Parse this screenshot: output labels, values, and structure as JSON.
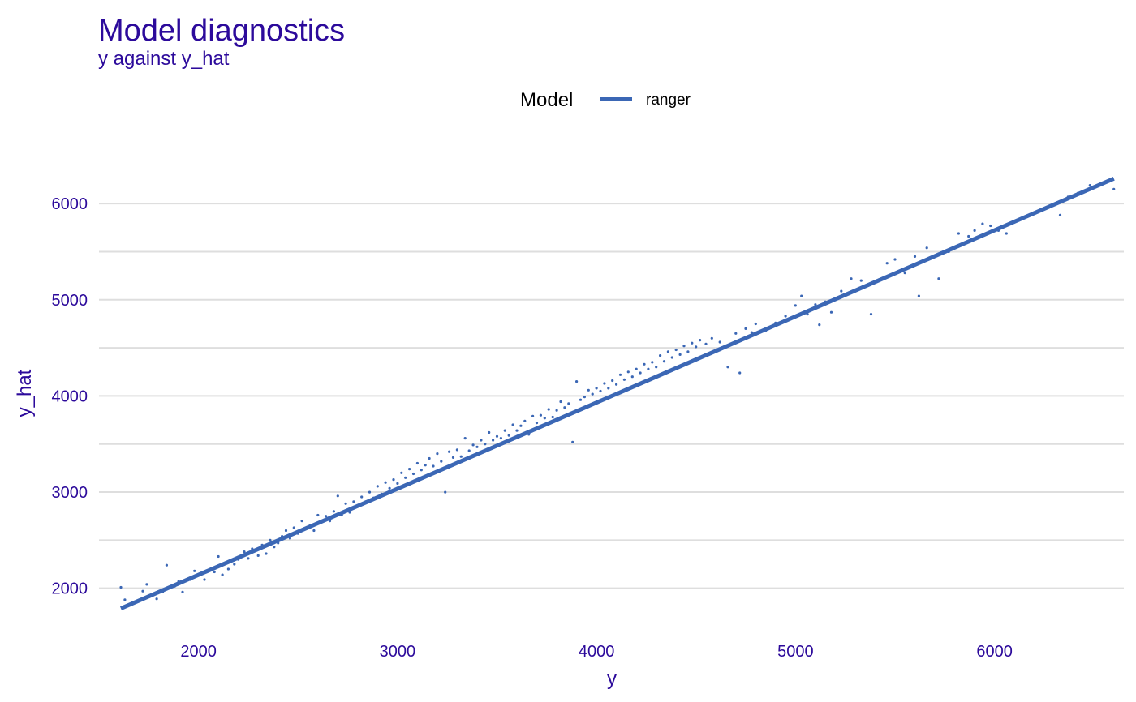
{
  "chart_data": {
    "type": "scatter",
    "title": "Model diagnostics",
    "subtitle": "y against y_hat",
    "xlabel": "y",
    "ylabel": "y_hat",
    "xlim": [
      1500,
      6650
    ],
    "ylim": [
      1500,
      6600
    ],
    "x_ticks": [
      2000,
      3000,
      4000,
      5000,
      6000
    ],
    "y_ticks": [
      2000,
      3000,
      4000,
      5000,
      6000
    ],
    "y_minor_gridlines": [
      2500,
      3500,
      4500,
      5500
    ],
    "grid": true,
    "legend": {
      "title": "Model",
      "position": "top",
      "entries": [
        "ranger"
      ]
    },
    "series": [
      {
        "name": "ranger",
        "color": "#3b67b5",
        "smooth_line": {
          "x": [
            1610,
            6600
          ],
          "y": [
            1790,
            6260
          ]
        },
        "points": [
          [
            1610,
            2010
          ],
          [
            1630,
            1880
          ],
          [
            1720,
            1970
          ],
          [
            1740,
            2040
          ],
          [
            1790,
            1890
          ],
          [
            1820,
            1960
          ],
          [
            1840,
            2240
          ],
          [
            1880,
            2020
          ],
          [
            1900,
            2070
          ],
          [
            1920,
            1960
          ],
          [
            1960,
            2090
          ],
          [
            1980,
            2180
          ],
          [
            2010,
            2140
          ],
          [
            2030,
            2090
          ],
          [
            2060,
            2200
          ],
          [
            2080,
            2170
          ],
          [
            2100,
            2330
          ],
          [
            2120,
            2140
          ],
          [
            2150,
            2200
          ],
          [
            2180,
            2250
          ],
          [
            2200,
            2300
          ],
          [
            2230,
            2380
          ],
          [
            2250,
            2310
          ],
          [
            2270,
            2410
          ],
          [
            2300,
            2340
          ],
          [
            2320,
            2450
          ],
          [
            2340,
            2360
          ],
          [
            2360,
            2500
          ],
          [
            2380,
            2430
          ],
          [
            2400,
            2470
          ],
          [
            2420,
            2540
          ],
          [
            2440,
            2600
          ],
          [
            2460,
            2520
          ],
          [
            2480,
            2630
          ],
          [
            2500,
            2570
          ],
          [
            2520,
            2700
          ],
          [
            2540,
            2620
          ],
          [
            2560,
            2650
          ],
          [
            2580,
            2600
          ],
          [
            2600,
            2760
          ],
          [
            2620,
            2690
          ],
          [
            2640,
            2750
          ],
          [
            2660,
            2700
          ],
          [
            2680,
            2800
          ],
          [
            2700,
            2960
          ],
          [
            2720,
            2760
          ],
          [
            2740,
            2880
          ],
          [
            2760,
            2790
          ],
          [
            2780,
            2900
          ],
          [
            2800,
            2860
          ],
          [
            2820,
            2950
          ],
          [
            2840,
            2900
          ],
          [
            2860,
            3000
          ],
          [
            2880,
            2940
          ],
          [
            2900,
            3060
          ],
          [
            2920,
            2980
          ],
          [
            2940,
            3100
          ],
          [
            2960,
            3040
          ],
          [
            2980,
            3130
          ],
          [
            3000,
            3090
          ],
          [
            3020,
            3200
          ],
          [
            3040,
            3150
          ],
          [
            3060,
            3240
          ],
          [
            3080,
            3190
          ],
          [
            3100,
            3300
          ],
          [
            3120,
            3230
          ],
          [
            3140,
            3280
          ],
          [
            3160,
            3350
          ],
          [
            3180,
            3270
          ],
          [
            3200,
            3400
          ],
          [
            3220,
            3320
          ],
          [
            3240,
            3000
          ],
          [
            3260,
            3420
          ],
          [
            3280,
            3360
          ],
          [
            3300,
            3440
          ],
          [
            3320,
            3370
          ],
          [
            3340,
            3560
          ],
          [
            3360,
            3430
          ],
          [
            3380,
            3490
          ],
          [
            3400,
            3470
          ],
          [
            3420,
            3540
          ],
          [
            3440,
            3500
          ],
          [
            3460,
            3620
          ],
          [
            3480,
            3540
          ],
          [
            3500,
            3580
          ],
          [
            3520,
            3560
          ],
          [
            3540,
            3640
          ],
          [
            3560,
            3590
          ],
          [
            3580,
            3700
          ],
          [
            3600,
            3640
          ],
          [
            3620,
            3690
          ],
          [
            3640,
            3740
          ],
          [
            3660,
            3600
          ],
          [
            3680,
            3790
          ],
          [
            3700,
            3720
          ],
          [
            3720,
            3800
          ],
          [
            3740,
            3770
          ],
          [
            3760,
            3860
          ],
          [
            3780,
            3780
          ],
          [
            3800,
            3850
          ],
          [
            3820,
            3940
          ],
          [
            3840,
            3880
          ],
          [
            3860,
            3920
          ],
          [
            3880,
            3520
          ],
          [
            3900,
            4150
          ],
          [
            3920,
            3960
          ],
          [
            3940,
            3990
          ],
          [
            3960,
            4060
          ],
          [
            3980,
            4020
          ],
          [
            4000,
            4080
          ],
          [
            4020,
            4050
          ],
          [
            4040,
            4130
          ],
          [
            4060,
            4080
          ],
          [
            4080,
            4160
          ],
          [
            4100,
            4120
          ],
          [
            4120,
            4220
          ],
          [
            4140,
            4170
          ],
          [
            4160,
            4250
          ],
          [
            4180,
            4200
          ],
          [
            4200,
            4280
          ],
          [
            4220,
            4240
          ],
          [
            4240,
            4330
          ],
          [
            4260,
            4280
          ],
          [
            4280,
            4350
          ],
          [
            4300,
            4300
          ],
          [
            4320,
            4420
          ],
          [
            4340,
            4360
          ],
          [
            4360,
            4460
          ],
          [
            4380,
            4400
          ],
          [
            4400,
            4480
          ],
          [
            4420,
            4430
          ],
          [
            4440,
            4520
          ],
          [
            4460,
            4460
          ],
          [
            4480,
            4550
          ],
          [
            4500,
            4510
          ],
          [
            4520,
            4580
          ],
          [
            4550,
            4540
          ],
          [
            4580,
            4600
          ],
          [
            4620,
            4560
          ],
          [
            4660,
            4300
          ],
          [
            4700,
            4650
          ],
          [
            4720,
            4240
          ],
          [
            4750,
            4700
          ],
          [
            4780,
            4660
          ],
          [
            4800,
            4750
          ],
          [
            4850,
            4680
          ],
          [
            4900,
            4760
          ],
          [
            4950,
            4830
          ],
          [
            5000,
            4940
          ],
          [
            5030,
            5040
          ],
          [
            5060,
            4850
          ],
          [
            5100,
            4950
          ],
          [
            5120,
            4740
          ],
          [
            5150,
            4980
          ],
          [
            5180,
            4870
          ],
          [
            5230,
            5090
          ],
          [
            5280,
            5220
          ],
          [
            5330,
            5200
          ],
          [
            5380,
            4850
          ],
          [
            5420,
            5210
          ],
          [
            5460,
            5380
          ],
          [
            5500,
            5420
          ],
          [
            5550,
            5280
          ],
          [
            5600,
            5450
          ],
          [
            5620,
            5040
          ],
          [
            5660,
            5540
          ],
          [
            5720,
            5220
          ],
          [
            5770,
            5500
          ],
          [
            5820,
            5690
          ],
          [
            5870,
            5660
          ],
          [
            5900,
            5720
          ],
          [
            5940,
            5790
          ],
          [
            5980,
            5770
          ],
          [
            6020,
            5720
          ],
          [
            6060,
            5690
          ],
          [
            6330,
            5880
          ],
          [
            6370,
            6070
          ],
          [
            6420,
            6110
          ],
          [
            6480,
            6190
          ],
          [
            6600,
            6150
          ]
        ]
      }
    ]
  }
}
